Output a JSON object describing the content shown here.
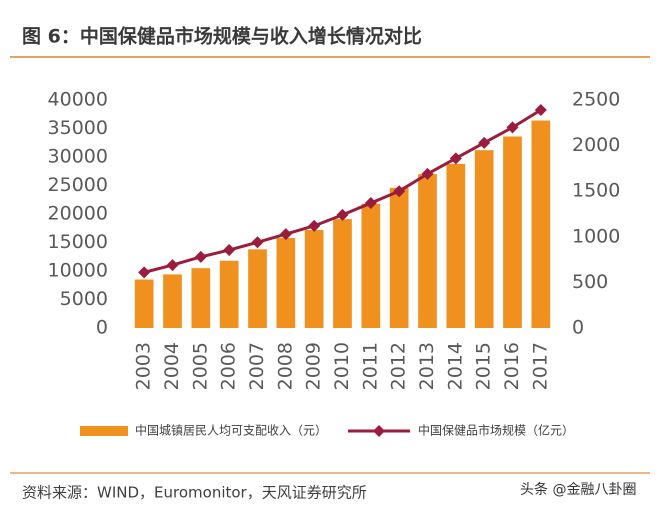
{
  "chart_data": {
    "type": "bar",
    "title": "图 6：中国保健品市场规模与收入增长情况对比",
    "categories": [
      "2003",
      "2004",
      "2005",
      "2006",
      "2007",
      "2008",
      "2009",
      "2010",
      "2011",
      "2012",
      "2013",
      "2014",
      "2015",
      "2016",
      "2017"
    ],
    "series": [
      {
        "name": "中国城镇居民人均可支配收入（元）",
        "type": "bar",
        "color": "#f0901e",
        "values": [
          8500,
          9400,
          10500,
          11800,
          13800,
          15800,
          17200,
          19100,
          21800,
          24600,
          27000,
          28800,
          31200,
          33600,
          36400
        ]
      },
      {
        "name": "中国保健品市场规模（亿元）",
        "type": "line",
        "axis": "y2",
        "color": "#9b1c3c",
        "values": [
          610,
          690,
          780,
          855,
          940,
          1030,
          1120,
          1240,
          1370,
          1500,
          1690,
          1860,
          2030,
          2200,
          2390
        ]
      }
    ],
    "ylim": [
      0,
      40000
    ],
    "yticks": [
      0,
      5000,
      10000,
      15000,
      20000,
      25000,
      30000,
      35000,
      40000
    ],
    "y2lim": [
      0,
      2500
    ],
    "y2ticks": [
      0,
      500,
      1000,
      1500,
      2000,
      2500
    ],
    "source": "资料来源：WIND，Euromonitor，天风证券研究所",
    "watermark": "头条 @金融八卦圈"
  }
}
